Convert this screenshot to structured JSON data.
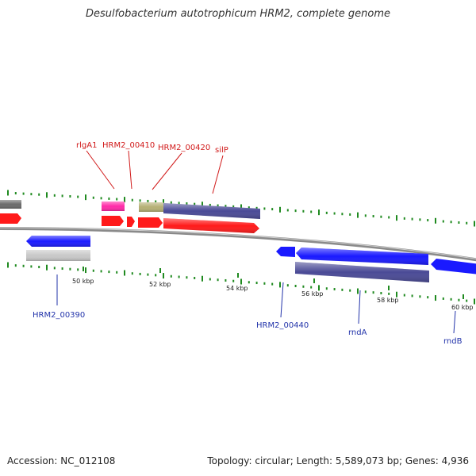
{
  "title": "Desulfobacterium autotrophicum HRM2, complete genome",
  "footer": {
    "accession": "Accession: NC_012108",
    "summary": "Topology: circular; Length: 5,589,073 bp; Genes: 4,936"
  },
  "colors": {
    "backbone": "#8a8a8a",
    "tick": "#1f8a1f",
    "forward_label": "#d11a1a",
    "reverse_label": "#2233aa",
    "cds_forward": "#ff1a1a",
    "cds_reverse": "#1a1aff",
    "pink": "#ff2aa8",
    "khaki": "#b5b074",
    "purple": "#4a4a96",
    "gray_dark": "#6a6a6a",
    "gray_light": "#c8c8c8"
  },
  "scale_labels": [
    "50 kbp",
    "52 kbp",
    "54 kbp",
    "56 kbp",
    "58 kbp",
    "60 kbp"
  ],
  "forward_gene_labels": [
    "rlgA1",
    "HRM2_00410",
    "HRM2_00420",
    "silP"
  ],
  "reverse_gene_labels": [
    "HRM2_00390",
    "HRM2_00440",
    "rndA",
    "rndB"
  ]
}
